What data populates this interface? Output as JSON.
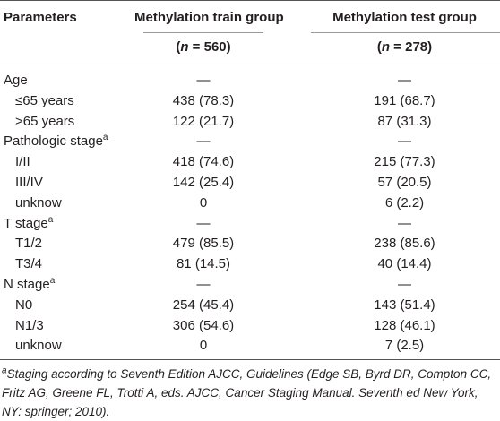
{
  "header": {
    "columns": [
      "Parameters",
      "Methylation train group",
      "Methylation test group"
    ],
    "subheaders": [
      {
        "open": "(",
        "var": "n",
        "rest": " = 560)"
      },
      {
        "open": "(",
        "var": "n",
        "rest": " = 278)"
      }
    ]
  },
  "table": {
    "groups": [
      {
        "label": "Age",
        "train": "—",
        "test": "—",
        "rows": [
          {
            "label": "≤65 years",
            "train": "438 (78.3)",
            "test": "191 (68.7)"
          },
          {
            "label": ">65 years",
            "train": "122 (21.7)",
            "test": "87 (31.3)"
          }
        ]
      },
      {
        "label": "Pathologic stage",
        "note": "a",
        "train": "—",
        "test": "—",
        "rows": [
          {
            "label": "I/II",
            "train": "418 (74.6)",
            "test": "215 (77.3)"
          },
          {
            "label": "III/IV",
            "train": "142 (25.4)",
            "test": "57 (20.5)"
          },
          {
            "label": "unknow",
            "train": "0",
            "test": "6 (2.2)"
          }
        ]
      },
      {
        "label": "T stage",
        "note": "a",
        "train": "—",
        "test": "—",
        "rows": [
          {
            "label": "T1/2",
            "train": "479 (85.5)",
            "test": "238 (85.6)"
          },
          {
            "label": "T3/4",
            "train": "81 (14.5)",
            "test": "40 (14.4)"
          }
        ]
      },
      {
        "label": "N stage",
        "note": "a",
        "train": "—",
        "test": "—",
        "rows": [
          {
            "label": "N0",
            "train": "254 (45.4)",
            "test": "143 (51.4)"
          },
          {
            "label": "N1/3",
            "train": "306 (54.6)",
            "test": "128 (46.1)"
          },
          {
            "label": "unknow",
            "train": "0",
            "test": "7 (2.5)"
          }
        ]
      }
    ]
  },
  "footnote": {
    "mark": "a",
    "text": "Staging according to Seventh Edition AJCC, Guidelines (Edge SB, Byrd DR, Compton CC, Fritz AG, Greene FL, Trotti A, eds. AJCC, Cancer Staging Manual. Seventh ed New York, NY: springer; 2010)."
  }
}
